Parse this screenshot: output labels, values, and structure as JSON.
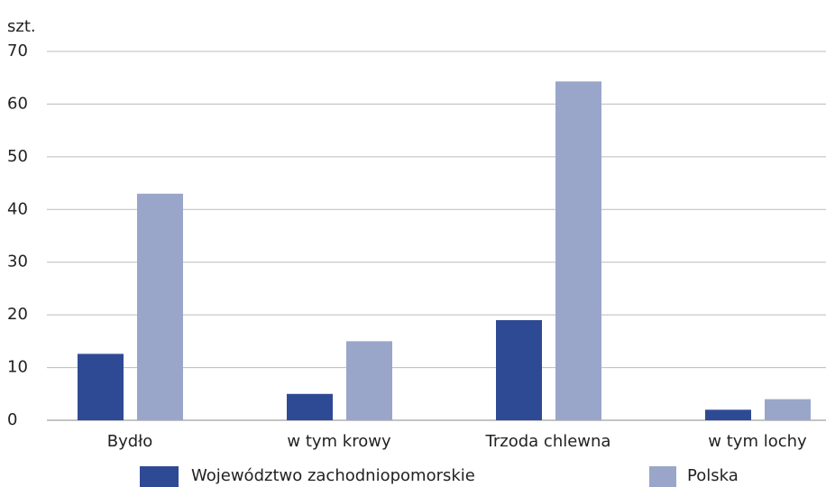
{
  "chart_data": {
    "type": "bar",
    "y_label": "szt.",
    "categories": [
      "Bydło",
      "w tym krowy",
      "Trzoda chlewna",
      "w tym lochy"
    ],
    "series": [
      {
        "name": "Województwo zachodniopomorskie",
        "color": "#2f4a94",
        "values": [
          12.6,
          5,
          19,
          2
        ]
      },
      {
        "name": "Polska",
        "color": "#9aa6c9",
        "values": [
          43,
          15,
          64.3,
          4
        ]
      }
    ],
    "ylim": [
      0,
      70
    ],
    "yticks": [
      0,
      10,
      20,
      30,
      40,
      50,
      60,
      70
    ],
    "grid": true,
    "legend": "bottom"
  }
}
